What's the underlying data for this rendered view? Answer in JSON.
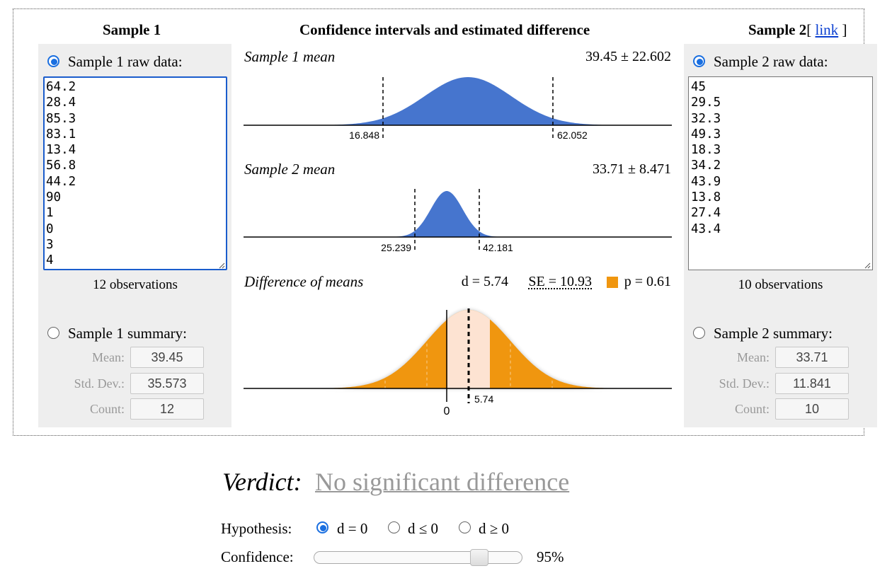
{
  "headers": {
    "sample1": "Sample 1",
    "middle": "Confidence intervals and estimated difference",
    "sample2": "Sample 2",
    "link_open": "[",
    "link_text": "link",
    "link_close": "]"
  },
  "sample1": {
    "raw_label": "Sample 1 raw data:",
    "raw_selected": true,
    "raw_data": "64.2\n28.4\n85.3\n83.1\n13.4\n56.8\n44.2\n90\n1\n0\n3\n4",
    "observations": "12 observations",
    "summary_label": "Sample 1 summary:",
    "mean_label": "Mean:",
    "mean": "39.45",
    "sd_label": "Std. Dev.:",
    "sd": "35.573",
    "count_label": "Count:",
    "count": "12"
  },
  "sample2": {
    "raw_label": "Sample 2 raw data:",
    "raw_selected": true,
    "raw_data": "45\n29.5\n32.3\n49.3\n18.3\n34.2\n43.9\n13.8\n27.4\n43.4",
    "observations": "10 observations",
    "summary_label": "Sample 2 summary:",
    "mean_label": "Mean:",
    "mean": "33.71",
    "sd_label": "Std. Dev.:",
    "sd": "11.841",
    "count_label": "Count:",
    "count": "10"
  },
  "plots": {
    "mean1": {
      "title": "Sample 1 mean",
      "value": "39.45 ± 22.602",
      "lo": "16.848",
      "hi": "62.052",
      "color": "#4675ce"
    },
    "mean2": {
      "title": "Sample 2 mean",
      "value": "33.71 ± 8.471",
      "lo": "25.239",
      "hi": "42.181",
      "color": "#4675ce"
    },
    "diff": {
      "title": "Difference of means",
      "d": "d = 5.74",
      "se": "SE = 10.93",
      "p": "p = 0.61",
      "zero": "0",
      "d_tick": "5.74",
      "color": "#f0960f",
      "ci_color": "#fde3d2"
    }
  },
  "verdict": {
    "label": "Verdict:",
    "value": "No significant difference"
  },
  "hypothesis": {
    "label": "Hypothesis:",
    "options": [
      "d = 0",
      "d ≤ 0",
      "d ≥ 0"
    ],
    "selected": 0
  },
  "confidence": {
    "label": "Confidence:",
    "value": "95%",
    "level": 0.95
  }
}
